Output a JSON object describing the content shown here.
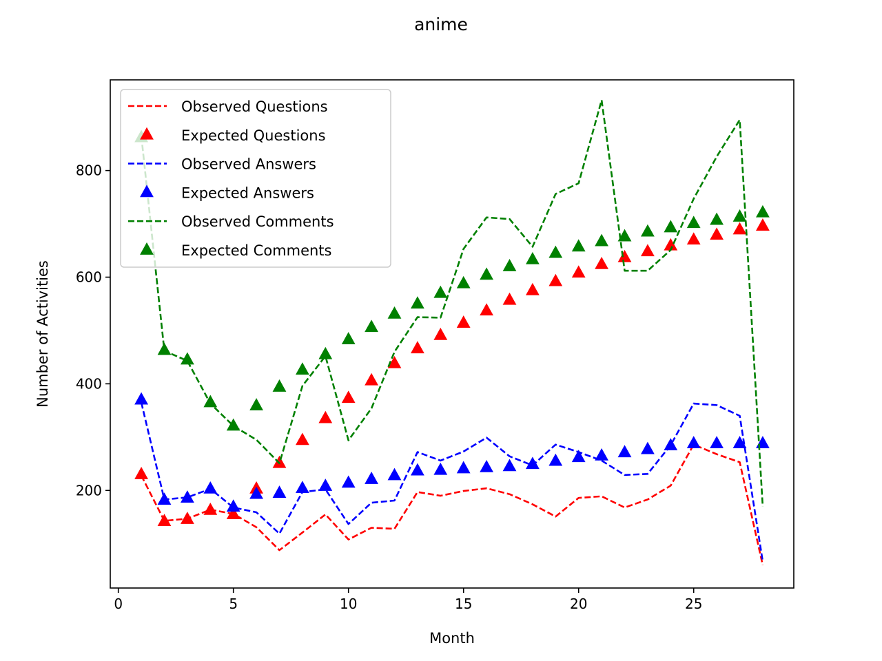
{
  "chart_data": {
    "type": "line",
    "title": "anime",
    "xlabel": "Month",
    "ylabel": "Number of Activities",
    "xlim": [
      -0.35,
      29.35
    ],
    "ylim": [
      17,
      970
    ],
    "xticks": [
      0,
      5,
      10,
      15,
      20,
      25
    ],
    "yticks": [
      200,
      400,
      600,
      800
    ],
    "grid": false,
    "legend_position": "top-left",
    "x": [
      1,
      2,
      3,
      4,
      5,
      6,
      7,
      8,
      9,
      10,
      11,
      12,
      13,
      14,
      15,
      16,
      17,
      18,
      19,
      20,
      21,
      22,
      23,
      24,
      25,
      26,
      27,
      28
    ],
    "series": [
      {
        "name": "Observed Questions",
        "style": "dashed-line",
        "color": "#ff0000",
        "values": [
          228,
          143,
          147,
          164,
          156,
          131,
          88,
          121,
          155,
          108,
          130,
          128,
          197,
          190,
          199,
          204,
          193,
          174,
          151,
          186,
          189,
          168,
          183,
          209,
          286,
          268,
          253,
          60
        ]
      },
      {
        "name": "Expected Questions",
        "style": "triangle-marker",
        "color": "#ff0000",
        "values": [
          230,
          142,
          146,
          163,
          155,
          203,
          251,
          294,
          335,
          373,
          406,
          438,
          466,
          491,
          514,
          537,
          557,
          575,
          592,
          608,
          624,
          637,
          648,
          659,
          670,
          679,
          689,
          696
        ]
      },
      {
        "name": "Observed Answers",
        "style": "dashed-line",
        "color": "#0000ff",
        "values": [
          365,
          183,
          187,
          203,
          168,
          159,
          119,
          197,
          202,
          137,
          177,
          181,
          272,
          256,
          273,
          299,
          264,
          247,
          286,
          272,
          256,
          229,
          231,
          285,
          363,
          360,
          340,
          67
        ]
      },
      {
        "name": "Expected Answers",
        "style": "triangle-marker",
        "color": "#0000ff",
        "values": [
          370,
          182,
          186,
          203,
          169,
          193,
          195,
          204,
          208,
          214,
          221,
          228,
          237,
          238,
          241,
          243,
          245,
          249,
          255,
          262,
          265,
          271,
          277,
          284,
          288,
          288,
          288,
          288
        ]
      },
      {
        "name": "Observed Comments",
        "style": "dashed-line",
        "color": "#008000",
        "values": [
          865,
          462,
          443,
          363,
          321,
          295,
          251,
          396,
          452,
          294,
          354,
          460,
          525,
          524,
          653,
          712,
          709,
          657,
          756,
          776,
          932,
          612,
          612,
          651,
          747,
          826,
          895,
          170
        ]
      },
      {
        "name": "Expected Comments",
        "style": "triangle-marker",
        "color": "#008000",
        "values": [
          862,
          463,
          445,
          365,
          321,
          359,
          394,
          426,
          455,
          483,
          506,
          531,
          550,
          570,
          588,
          604,
          620,
          633,
          645,
          657,
          667,
          676,
          685,
          693,
          701,
          707,
          713,
          721
        ]
      }
    ]
  }
}
